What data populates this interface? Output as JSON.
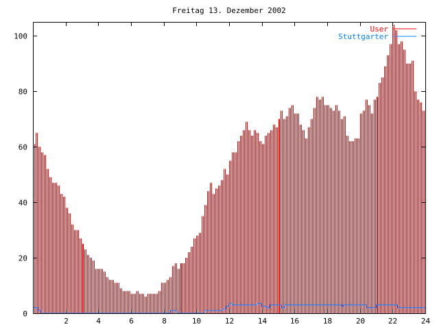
{
  "chart_data": {
    "type": "bar",
    "title": "Freitag 13. Dezember 2002",
    "xlabel": "",
    "ylabel": "",
    "xlim": [
      0,
      24
    ],
    "ylim": [
      0,
      105
    ],
    "xticks": [
      "2",
      "4",
      "6",
      "8",
      "10",
      "12",
      "14",
      "16",
      "18",
      "20",
      "22",
      "24"
    ],
    "yticks": [
      "0",
      "20",
      "40",
      "60",
      "80",
      "100"
    ],
    "legend_position": "top-right",
    "series": [
      {
        "name": "User",
        "color": "#ff0000",
        "style": "impulses",
        "x_step_hours": 0.16667,
        "values": [
          61,
          65,
          60,
          58,
          57,
          52,
          49,
          47,
          47,
          46,
          43,
          42,
          38,
          36,
          32,
          30,
          30,
          27,
          25,
          23,
          21,
          20,
          19,
          16,
          16,
          16,
          15,
          13,
          12,
          12,
          11,
          11,
          9,
          8,
          8,
          8,
          7,
          7,
          8,
          7,
          7,
          6,
          7,
          7,
          7,
          7,
          8,
          11,
          11,
          12,
          13,
          17,
          18,
          16,
          18,
          18,
          20,
          22,
          24,
          27,
          28,
          29,
          35,
          39,
          44,
          47,
          43,
          45,
          46,
          48,
          52,
          50,
          55,
          58,
          58,
          62,
          64,
          66,
          69,
          66,
          64,
          66,
          65,
          62,
          61,
          64,
          65,
          66,
          68,
          67,
          70,
          73,
          70,
          71,
          74,
          75,
          72,
          72,
          68,
          66,
          63,
          67,
          70,
          74,
          78,
          77,
          78,
          75,
          75,
          74,
          73,
          75,
          73,
          70,
          71,
          64,
          62,
          62,
          63,
          63,
          72,
          73,
          77,
          75,
          72,
          77,
          78,
          83,
          85,
          89,
          93,
          97,
          104,
          102,
          97,
          98,
          95,
          90,
          90,
          91,
          80,
          77,
          76,
          73
        ]
      },
      {
        "name": "Stuttgarter",
        "color": "#0080ff",
        "style": "steps",
        "x": [
          0,
          0.3,
          0.5,
          8.4,
          8.8,
          10.5,
          11.6,
          11.8,
          12,
          12.2,
          13.7,
          14,
          14.3,
          14.5,
          15.2,
          15.4,
          18.9,
          19,
          20.4,
          21,
          22.3,
          24
        ],
        "values": [
          2,
          1,
          0,
          1,
          0,
          1,
          1.5,
          2.5,
          3.5,
          3,
          3.5,
          2.5,
          2,
          3,
          2,
          3,
          2.5,
          3,
          2,
          3,
          2,
          2
        ]
      }
    ]
  }
}
